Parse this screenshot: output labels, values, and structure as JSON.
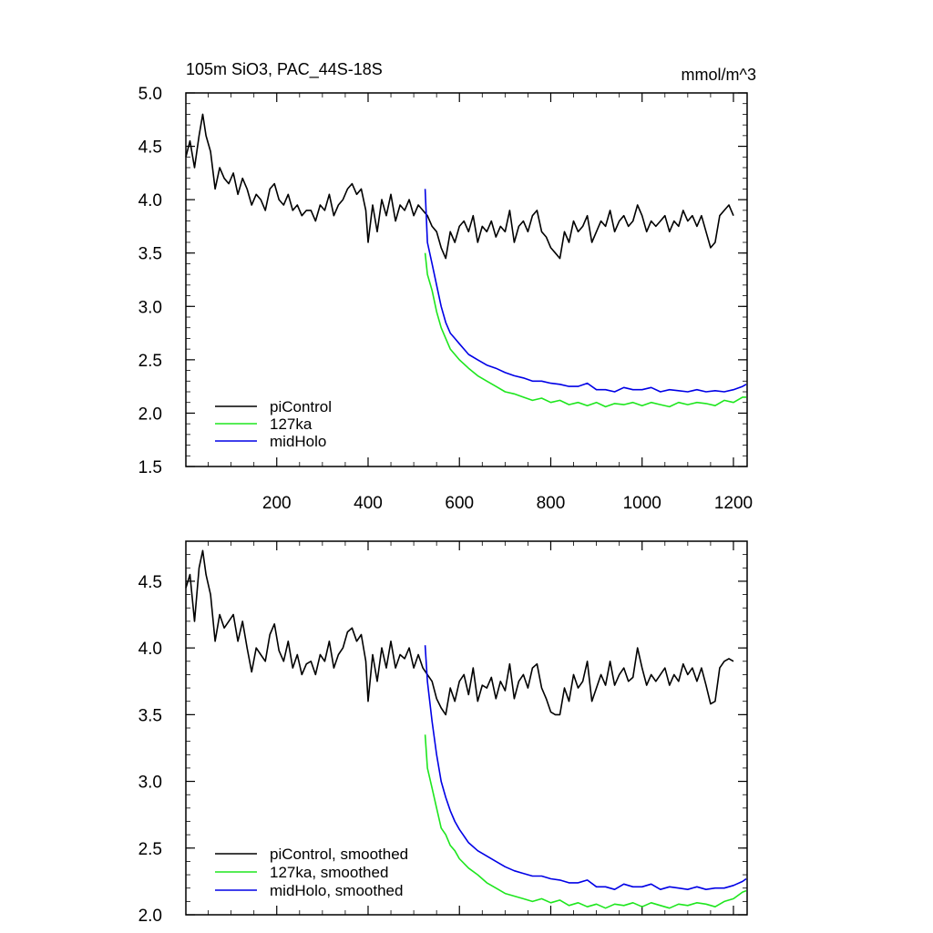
{
  "chart_data": [
    {
      "type": "line",
      "title": "105m SiO3, PAC_44S-18S",
      "units_label": "mmol/m^3",
      "xlim": [
        1,
        1230
      ],
      "ylim": [
        1.5,
        5.0
      ],
      "x_ticks": [
        200,
        400,
        600,
        800,
        1000,
        1200
      ],
      "y_ticks": [
        1.5,
        2.0,
        2.5,
        3.0,
        3.5,
        4.0,
        4.5,
        5.0
      ],
      "y_tick_labels": [
        "1.5",
        "2.0",
        "2.5",
        "3.0",
        "3.5",
        "4.0",
        "4.5",
        "5.0"
      ],
      "x_tick_labels": [
        "200",
        "400",
        "600",
        "800",
        "1000",
        "1200"
      ],
      "legend": {
        "placement": "bottom-left",
        "entries": [
          "piControl",
          "127ka",
          "midHolo"
        ]
      },
      "series": [
        {
          "name": "piControl",
          "color": "#000000",
          "x": [
            1,
            10,
            20,
            30,
            38,
            45,
            55,
            65,
            75,
            85,
            95,
            105,
            115,
            125,
            135,
            145,
            155,
            165,
            175,
            185,
            195,
            205,
            215,
            225,
            235,
            245,
            255,
            265,
            275,
            285,
            295,
            305,
            315,
            325,
            335,
            345,
            355,
            365,
            375,
            385,
            395,
            400,
            410,
            420,
            430,
            440,
            450,
            460,
            470,
            480,
            490,
            500,
            510,
            520,
            530,
            540,
            550,
            560,
            570,
            580,
            590,
            600,
            610,
            620,
            630,
            640,
            650,
            660,
            670,
            680,
            690,
            700,
            710,
            720,
            730,
            740,
            750,
            760,
            770,
            780,
            790,
            800,
            810,
            820,
            830,
            840,
            850,
            860,
            870,
            880,
            890,
            900,
            910,
            920,
            930,
            940,
            950,
            960,
            970,
            980,
            990,
            1000,
            1010,
            1020,
            1030,
            1040,
            1050,
            1060,
            1070,
            1080,
            1090,
            1100,
            1110,
            1120,
            1130,
            1140,
            1150,
            1160,
            1170,
            1180,
            1190,
            1200
          ],
          "y": [
            4.4,
            4.55,
            4.3,
            4.6,
            4.8,
            4.6,
            4.45,
            4.1,
            4.3,
            4.2,
            4.15,
            4.25,
            4.05,
            4.2,
            4.1,
            3.95,
            4.05,
            4.0,
            3.9,
            4.1,
            4.15,
            4.0,
            3.95,
            4.05,
            3.9,
            3.95,
            3.85,
            3.9,
            3.9,
            3.8,
            3.95,
            3.9,
            4.05,
            3.85,
            3.95,
            4.0,
            4.1,
            4.15,
            4.05,
            4.1,
            3.9,
            3.6,
            3.95,
            3.7,
            4.0,
            3.85,
            4.05,
            3.8,
            3.95,
            3.9,
            4.0,
            3.85,
            3.95,
            3.9,
            3.85,
            3.75,
            3.7,
            3.55,
            3.45,
            3.7,
            3.6,
            3.75,
            3.8,
            3.7,
            3.85,
            3.6,
            3.75,
            3.7,
            3.8,
            3.65,
            3.75,
            3.7,
            3.9,
            3.6,
            3.75,
            3.8,
            3.7,
            3.85,
            3.9,
            3.7,
            3.65,
            3.55,
            3.5,
            3.45,
            3.7,
            3.6,
            3.8,
            3.7,
            3.75,
            3.85,
            3.6,
            3.7,
            3.8,
            3.75,
            3.9,
            3.7,
            3.8,
            3.85,
            3.75,
            3.8,
            3.95,
            3.85,
            3.7,
            3.8,
            3.75,
            3.8,
            3.85,
            3.7,
            3.8,
            3.75,
            3.9,
            3.8,
            3.85,
            3.75,
            3.85,
            3.7,
            3.55,
            3.6,
            3.85,
            3.9,
            3.95,
            3.85
          ]
        },
        {
          "name": "127ka",
          "color": "#1ee61e",
          "x": [
            525,
            530,
            540,
            550,
            560,
            570,
            580,
            590,
            600,
            620,
            640,
            660,
            680,
            700,
            720,
            740,
            760,
            780,
            800,
            820,
            840,
            860,
            880,
            900,
            920,
            940,
            960,
            980,
            1000,
            1020,
            1040,
            1060,
            1080,
            1100,
            1120,
            1140,
            1160,
            1180,
            1200,
            1220,
            1228
          ],
          "y": [
            3.5,
            3.3,
            3.15,
            2.95,
            2.8,
            2.7,
            2.6,
            2.55,
            2.5,
            2.42,
            2.35,
            2.3,
            2.25,
            2.2,
            2.18,
            2.15,
            2.12,
            2.14,
            2.1,
            2.12,
            2.08,
            2.1,
            2.07,
            2.1,
            2.06,
            2.09,
            2.08,
            2.1,
            2.07,
            2.1,
            2.08,
            2.06,
            2.1,
            2.08,
            2.1,
            2.09,
            2.07,
            2.12,
            2.1,
            2.15,
            2.15
          ]
        },
        {
          "name": "midHolo",
          "color": "#0000e6",
          "x": [
            525,
            530,
            540,
            550,
            560,
            570,
            580,
            590,
            600,
            620,
            640,
            660,
            680,
            700,
            720,
            740,
            760,
            780,
            800,
            820,
            840,
            860,
            880,
            900,
            920,
            940,
            960,
            980,
            1000,
            1020,
            1040,
            1060,
            1080,
            1100,
            1120,
            1140,
            1160,
            1180,
            1200,
            1220,
            1228
          ],
          "y": [
            4.1,
            3.6,
            3.4,
            3.2,
            3.0,
            2.85,
            2.75,
            2.7,
            2.65,
            2.55,
            2.5,
            2.45,
            2.42,
            2.38,
            2.35,
            2.33,
            2.3,
            2.3,
            2.28,
            2.27,
            2.25,
            2.25,
            2.28,
            2.22,
            2.22,
            2.2,
            2.24,
            2.22,
            2.22,
            2.24,
            2.2,
            2.22,
            2.21,
            2.2,
            2.22,
            2.2,
            2.21,
            2.2,
            2.22,
            2.25,
            2.27
          ]
        }
      ]
    },
    {
      "type": "line",
      "xlim": [
        1,
        1230
      ],
      "ylim": [
        2.0,
        4.8
      ],
      "x_ticks": [
        200,
        400,
        600,
        800,
        1000,
        1200
      ],
      "y_ticks": [
        2.0,
        2.5,
        3.0,
        3.5,
        4.0,
        4.5
      ],
      "y_tick_labels": [
        "2.0",
        "2.5",
        "3.0",
        "3.5",
        "4.0",
        "4.5"
      ],
      "legend": {
        "placement": "bottom-left",
        "entries": [
          "piControl, smoothed",
          "127ka, smoothed",
          "midHolo, smoothed"
        ]
      },
      "series": [
        {
          "name": "piControl, smoothed",
          "color": "#000000",
          "x": [
            1,
            10,
            20,
            30,
            38,
            45,
            55,
            65,
            75,
            85,
            95,
            105,
            115,
            125,
            135,
            145,
            155,
            165,
            175,
            185,
            195,
            205,
            215,
            225,
            235,
            245,
            255,
            265,
            275,
            285,
            295,
            305,
            315,
            325,
            335,
            345,
            355,
            365,
            375,
            385,
            395,
            400,
            410,
            420,
            430,
            440,
            450,
            460,
            470,
            480,
            490,
            500,
            510,
            520,
            530,
            540,
            550,
            560,
            570,
            580,
            590,
            600,
            610,
            620,
            630,
            640,
            650,
            660,
            670,
            680,
            690,
            700,
            710,
            720,
            730,
            740,
            750,
            760,
            770,
            780,
            790,
            800,
            810,
            820,
            830,
            840,
            850,
            860,
            870,
            880,
            890,
            900,
            910,
            920,
            930,
            940,
            950,
            960,
            970,
            980,
            990,
            1000,
            1010,
            1020,
            1030,
            1040,
            1050,
            1060,
            1070,
            1080,
            1090,
            1100,
            1110,
            1120,
            1130,
            1140,
            1150,
            1160,
            1170,
            1180,
            1190,
            1200
          ],
          "y": [
            4.45,
            4.55,
            4.2,
            4.6,
            4.73,
            4.55,
            4.4,
            4.05,
            4.25,
            4.15,
            4.2,
            4.25,
            4.05,
            4.2,
            4.0,
            3.82,
            4.0,
            3.95,
            3.9,
            4.1,
            4.18,
            3.98,
            3.9,
            4.05,
            3.85,
            3.95,
            3.8,
            3.88,
            3.9,
            3.8,
            3.95,
            3.9,
            4.05,
            3.85,
            3.95,
            4.0,
            4.12,
            4.15,
            4.05,
            4.1,
            3.9,
            3.6,
            3.95,
            3.75,
            4.0,
            3.85,
            4.05,
            3.85,
            3.95,
            3.92,
            4.0,
            3.85,
            3.95,
            3.85,
            3.8,
            3.75,
            3.62,
            3.55,
            3.5,
            3.7,
            3.6,
            3.75,
            3.8,
            3.65,
            3.85,
            3.6,
            3.72,
            3.7,
            3.78,
            3.62,
            3.75,
            3.68,
            3.88,
            3.62,
            3.75,
            3.8,
            3.7,
            3.85,
            3.88,
            3.7,
            3.62,
            3.52,
            3.5,
            3.5,
            3.7,
            3.6,
            3.8,
            3.7,
            3.75,
            3.9,
            3.6,
            3.7,
            3.8,
            3.72,
            3.9,
            3.72,
            3.8,
            3.85,
            3.75,
            3.78,
            4.0,
            3.85,
            3.72,
            3.8,
            3.75,
            3.8,
            3.85,
            3.72,
            3.8,
            3.75,
            3.88,
            3.8,
            3.85,
            3.75,
            3.85,
            3.72,
            3.58,
            3.6,
            3.85,
            3.9,
            3.92,
            3.9
          ]
        },
        {
          "name": "127ka, smoothed",
          "color": "#1ee61e",
          "x": [
            525,
            530,
            540,
            550,
            560,
            570,
            580,
            590,
            600,
            620,
            640,
            660,
            680,
            700,
            720,
            740,
            760,
            780,
            800,
            820,
            840,
            860,
            880,
            900,
            920,
            940,
            960,
            980,
            1000,
            1020,
            1040,
            1060,
            1080,
            1100,
            1120,
            1140,
            1160,
            1180,
            1200,
            1220,
            1228
          ],
          "y": [
            3.35,
            3.1,
            2.95,
            2.8,
            2.65,
            2.6,
            2.52,
            2.48,
            2.42,
            2.35,
            2.3,
            2.24,
            2.2,
            2.16,
            2.14,
            2.12,
            2.1,
            2.12,
            2.09,
            2.11,
            2.07,
            2.09,
            2.06,
            2.08,
            2.05,
            2.08,
            2.07,
            2.09,
            2.06,
            2.09,
            2.07,
            2.05,
            2.08,
            2.07,
            2.09,
            2.08,
            2.06,
            2.1,
            2.12,
            2.17,
            2.18
          ]
        },
        {
          "name": "midHolo, smoothed",
          "color": "#0000e6",
          "x": [
            525,
            530,
            540,
            550,
            560,
            570,
            580,
            590,
            600,
            620,
            640,
            660,
            680,
            700,
            720,
            740,
            760,
            780,
            800,
            820,
            840,
            860,
            880,
            900,
            920,
            940,
            960,
            980,
            1000,
            1020,
            1040,
            1060,
            1080,
            1100,
            1120,
            1140,
            1160,
            1180,
            1200,
            1220,
            1228
          ],
          "y": [
            4.02,
            3.75,
            3.45,
            3.2,
            3.0,
            2.88,
            2.78,
            2.7,
            2.64,
            2.54,
            2.48,
            2.44,
            2.4,
            2.36,
            2.33,
            2.31,
            2.29,
            2.29,
            2.27,
            2.26,
            2.24,
            2.24,
            2.26,
            2.21,
            2.21,
            2.19,
            2.23,
            2.21,
            2.21,
            2.23,
            2.19,
            2.21,
            2.2,
            2.19,
            2.21,
            2.19,
            2.2,
            2.2,
            2.22,
            2.25,
            2.27
          ]
        }
      ]
    }
  ]
}
